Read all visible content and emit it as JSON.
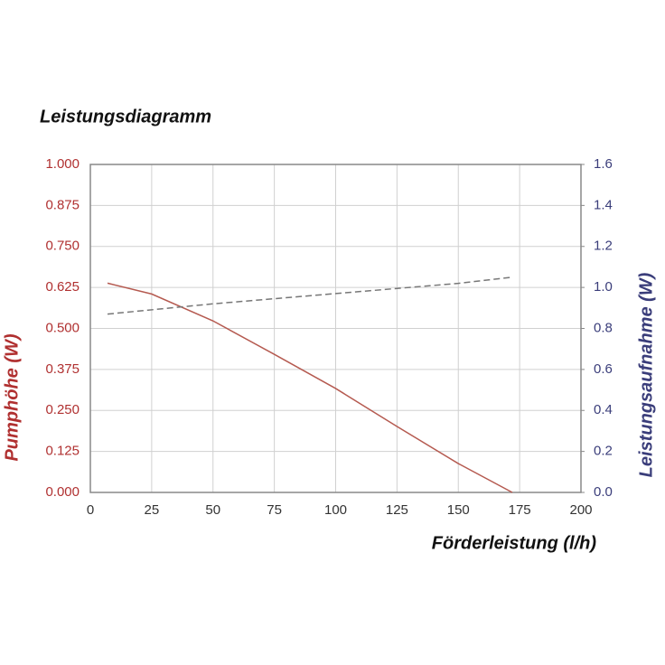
{
  "chart_data": {
    "type": "line",
    "title": "Leistungsdiagramm",
    "x_label": "Förderleistung (l/h)",
    "y_label": "Pumphöhe (W)",
    "y2_label": "Leistungsaufnahme (W)",
    "xlim": [
      0,
      200
    ],
    "xticks": [
      0,
      25,
      50,
      75,
      100,
      125,
      150,
      175,
      200
    ],
    "ylim": [
      0,
      1
    ],
    "yticks": [
      {
        "value": 0,
        "label": "0.000"
      },
      0.125,
      {
        "value": 0.25,
        "label": "0.250"
      },
      0.375,
      {
        "value": 0.5,
        "label": "0.500"
      },
      0.625,
      {
        "value": 0.75,
        "label": "0.750"
      },
      0.875,
      {
        "value": 1,
        "label": "1.000"
      }
    ],
    "y2lim": [
      0,
      1.6
    ],
    "y2ticks": [
      {
        "value": 0,
        "label": "0.0"
      },
      0.2,
      0.4,
      0.6,
      0.8,
      {
        "value": 1,
        "label": "1.0"
      },
      1.2,
      1.4,
      1.6
    ],
    "y_color": "#b03030",
    "y2_color": "#3a3d7a",
    "grid": true,
    "series": [
      {
        "name": "Pumphöhe",
        "color": "#b55a50",
        "dashed": false,
        "x": [
          7,
          25,
          50,
          75,
          100,
          125,
          150,
          172
        ],
        "values": [
          0.638,
          0.605,
          0.523,
          0.421,
          0.317,
          0.201,
          0.088,
          0
        ]
      },
      {
        "name": "Leistungsaufnahme",
        "color": "#777777",
        "dashed": true,
        "axis": "y2",
        "x": [
          7,
          50,
          100,
          150,
          172
        ],
        "values": [
          0.87,
          0.92,
          0.97,
          1.02,
          1.05
        ]
      }
    ]
  }
}
